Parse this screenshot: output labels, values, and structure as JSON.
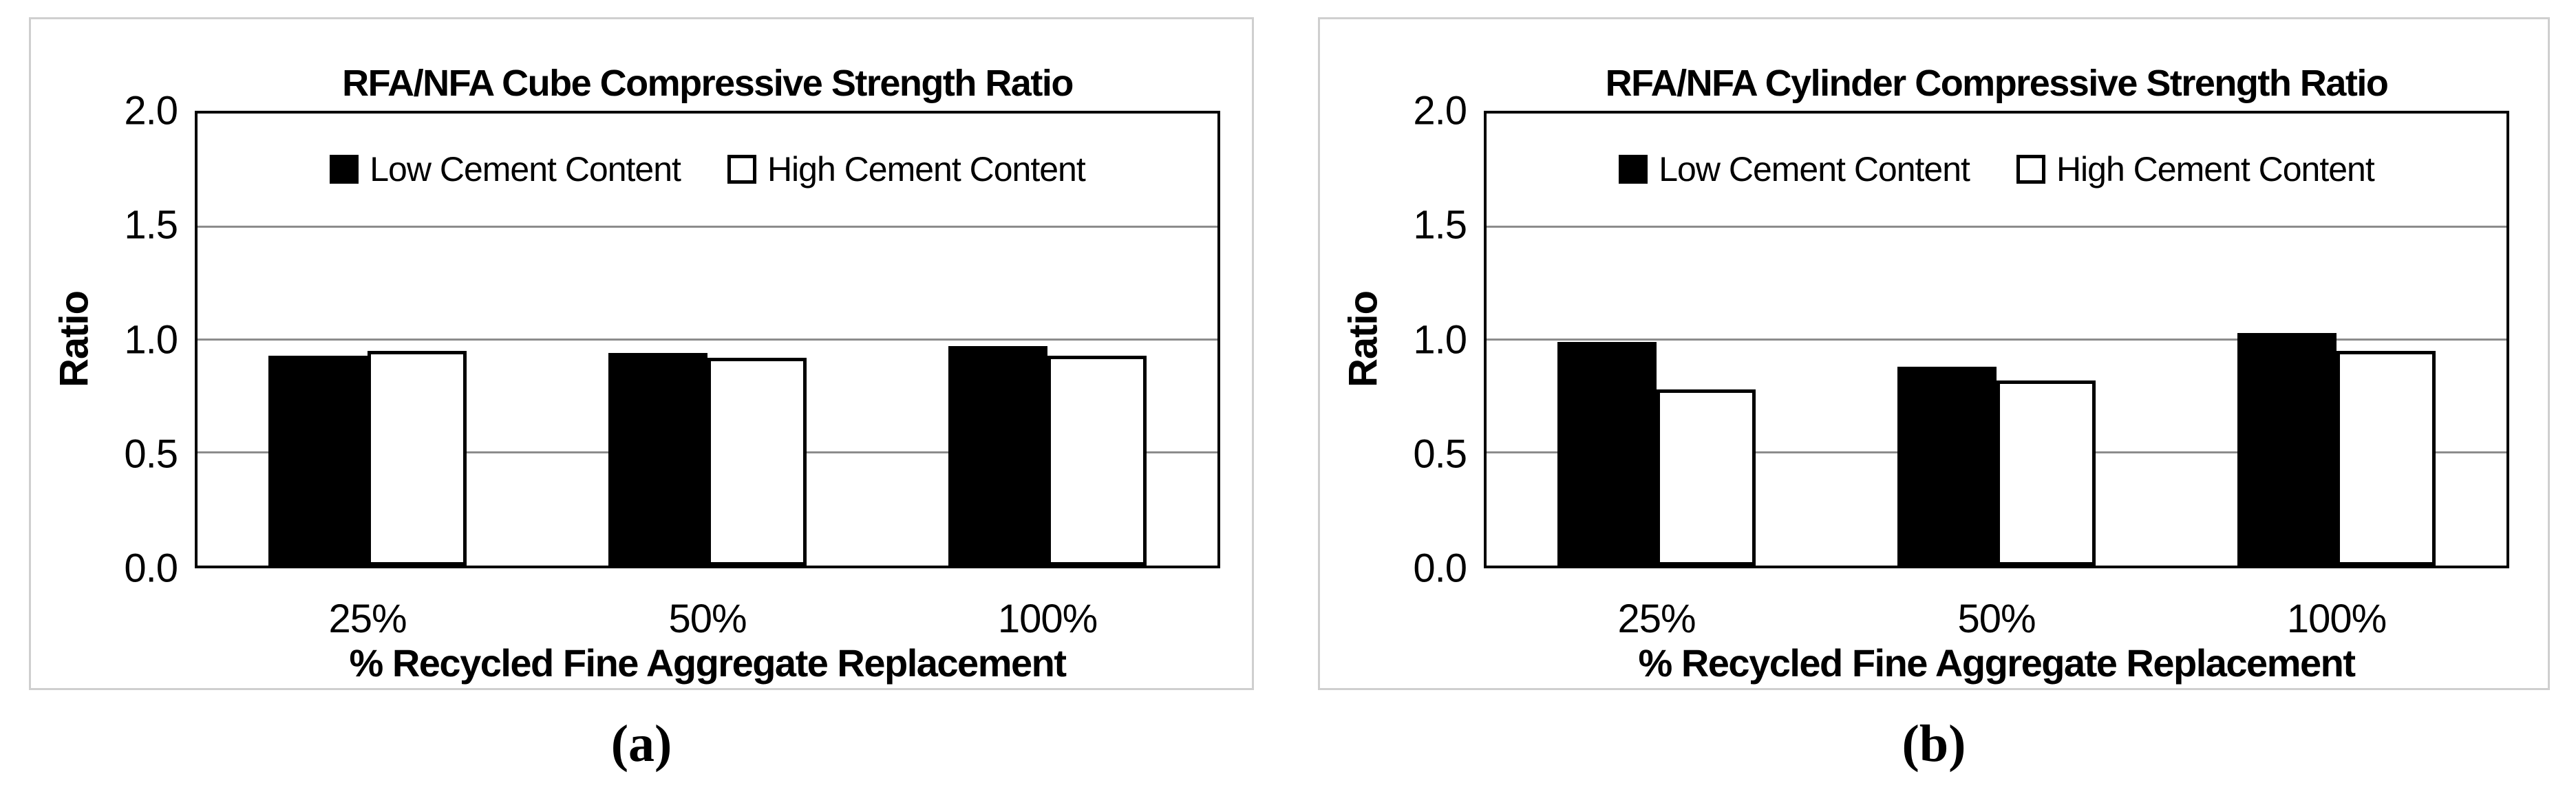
{
  "colors": {
    "background": "#ffffff",
    "panel_border": "#cfcfcf",
    "plot_border": "#000000",
    "gridline": "#8c8c8c",
    "bar_low_fill": "#000000",
    "bar_high_fill": "#ffffff",
    "bar_outline": "#000000",
    "text": "#000000"
  },
  "chart_data": [
    {
      "type": "bar",
      "panel_label": "(a)",
      "title": "RFA/NFA Cube Compressive Strength Ratio",
      "xlabel": "% Recycled Fine Aggregate Replacement",
      "ylabel": "Ratio",
      "ylim": [
        0.0,
        2.0
      ],
      "ytick_values": [
        2.0,
        1.5,
        1.0,
        0.5,
        0.0
      ],
      "ytick_labels": [
        "2.0",
        "1.5",
        "1.0",
        "0.5",
        "0.0"
      ],
      "categories": [
        "25%",
        "50%",
        "100%"
      ],
      "series": [
        {
          "name": "Low Cement Content",
          "fill": "#000000",
          "values": [
            0.93,
            0.94,
            0.97
          ]
        },
        {
          "name": "High Cement Content",
          "fill": "#ffffff",
          "values": [
            0.95,
            0.92,
            0.93
          ]
        }
      ],
      "grid": "horizontal",
      "legend_position": "top-center-inside"
    },
    {
      "type": "bar",
      "panel_label": "(b)",
      "title": "RFA/NFA Cylinder Compressive Strength Ratio",
      "xlabel": "% Recycled Fine Aggregate Replacement",
      "ylabel": "Ratio",
      "ylim": [
        0.0,
        2.0
      ],
      "ytick_values": [
        2.0,
        1.5,
        1.0,
        0.5,
        0.0
      ],
      "ytick_labels": [
        "2.0",
        "1.5",
        "1.0",
        "0.5",
        "0.0"
      ],
      "categories": [
        "25%",
        "50%",
        "100%"
      ],
      "series": [
        {
          "name": "Low Cement Content",
          "fill": "#000000",
          "values": [
            0.99,
            0.88,
            1.03
          ]
        },
        {
          "name": "High Cement Content",
          "fill": "#ffffff",
          "values": [
            0.78,
            0.82,
            0.95
          ]
        }
      ],
      "grid": "horizontal",
      "legend_position": "top-center-inside"
    }
  ]
}
